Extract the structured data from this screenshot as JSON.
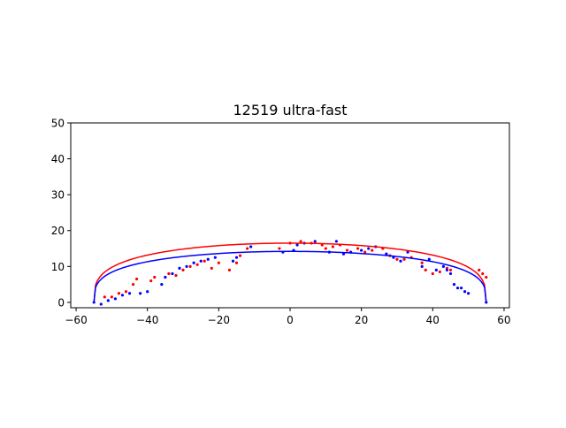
{
  "chart_data": {
    "type": "scatter",
    "title": "12519 ultra-fast",
    "xlabel": "",
    "ylabel": "",
    "xlim": [
      -61.5,
      61.5
    ],
    "ylim": [
      -1.5,
      50
    ],
    "x_ticks": [
      -60,
      -40,
      -20,
      0,
      20,
      40,
      60
    ],
    "y_ticks": [
      0,
      10,
      20,
      30,
      40,
      50
    ],
    "x_tick_labels": [
      "−60",
      "−40",
      "−20",
      "0",
      "20",
      "40",
      "60"
    ],
    "y_tick_labels": [
      "0",
      "10",
      "20",
      "30",
      "40",
      "50"
    ],
    "grid": false,
    "legend": "none",
    "series": [
      {
        "color": "#ff0000",
        "kind": "points",
        "points": [
          [
            -52,
            1.5
          ],
          [
            -50,
            1.5
          ],
          [
            -48,
            2.5
          ],
          [
            -46,
            3
          ],
          [
            -44,
            5
          ],
          [
            -43,
            6.5
          ],
          [
            -39,
            6
          ],
          [
            -38,
            7
          ],
          [
            -34,
            8
          ],
          [
            -32,
            7.5
          ],
          [
            -30,
            9
          ],
          [
            -28,
            10
          ],
          [
            -26,
            10.5
          ],
          [
            -24,
            11.5
          ],
          [
            -22,
            9.5
          ],
          [
            -20,
            11
          ],
          [
            -17,
            9
          ],
          [
            -15,
            11
          ],
          [
            -14,
            13
          ],
          [
            -12,
            15
          ],
          [
            -3,
            15
          ],
          [
            0,
            16.5
          ],
          [
            3,
            17
          ],
          [
            6,
            16.5
          ],
          [
            9,
            16
          ],
          [
            10,
            15
          ],
          [
            12,
            15.5
          ],
          [
            14,
            16
          ],
          [
            16,
            14.5
          ],
          [
            19,
            15
          ],
          [
            21,
            14
          ],
          [
            23,
            14.5
          ],
          [
            26,
            15
          ],
          [
            28,
            13
          ],
          [
            30,
            12
          ],
          [
            32,
            12
          ],
          [
            34,
            12.5
          ],
          [
            37,
            11
          ],
          [
            38,
            9
          ],
          [
            40,
            8
          ],
          [
            42,
            8.5
          ],
          [
            44,
            9.5
          ],
          [
            45,
            9
          ],
          [
            53,
            9
          ],
          [
            54,
            8
          ],
          [
            55,
            7
          ]
        ]
      },
      {
        "color": "#0000ff",
        "kind": "points",
        "points": [
          [
            -55,
            0
          ],
          [
            -53,
            -0.5
          ],
          [
            -51,
            0.5
          ],
          [
            -49,
            1
          ],
          [
            -47,
            2
          ],
          [
            -45,
            2.5
          ],
          [
            -42,
            2.5
          ],
          [
            -40,
            3
          ],
          [
            -36,
            5
          ],
          [
            -35,
            7
          ],
          [
            -33,
            8
          ],
          [
            -31,
            9.5
          ],
          [
            -29,
            10
          ],
          [
            -27,
            11
          ],
          [
            -25,
            11.5
          ],
          [
            -23,
            12
          ],
          [
            -21,
            12.5
          ],
          [
            -16,
            11.5
          ],
          [
            -15,
            12.5
          ],
          [
            -11,
            15.5
          ],
          [
            -2,
            14
          ],
          [
            1,
            14.5
          ],
          [
            2,
            16
          ],
          [
            4,
            16.5
          ],
          [
            7,
            17
          ],
          [
            11,
            14
          ],
          [
            13,
            17
          ],
          [
            15,
            13.5
          ],
          [
            17,
            14
          ],
          [
            20,
            14.5
          ],
          [
            22,
            15
          ],
          [
            24,
            15.5
          ],
          [
            27,
            13.5
          ],
          [
            29,
            12.5
          ],
          [
            31,
            11.5
          ],
          [
            33,
            14
          ],
          [
            37,
            10
          ],
          [
            39,
            12
          ],
          [
            41,
            9
          ],
          [
            43,
            10
          ],
          [
            44,
            9
          ],
          [
            45,
            8
          ],
          [
            46,
            5
          ],
          [
            47,
            4
          ],
          [
            48,
            4
          ],
          [
            49,
            3
          ],
          [
            50,
            2.5
          ],
          [
            55,
            0
          ]
        ]
      },
      {
        "color": "#ff0000",
        "kind": "curve",
        "center": 0,
        "half_width": 55,
        "peak": 16.5,
        "exponent": 0.3
      },
      {
        "color": "#0000ff",
        "kind": "curve",
        "center": 0,
        "half_width": 55,
        "peak": 14.2,
        "exponent": 0.3
      }
    ]
  }
}
